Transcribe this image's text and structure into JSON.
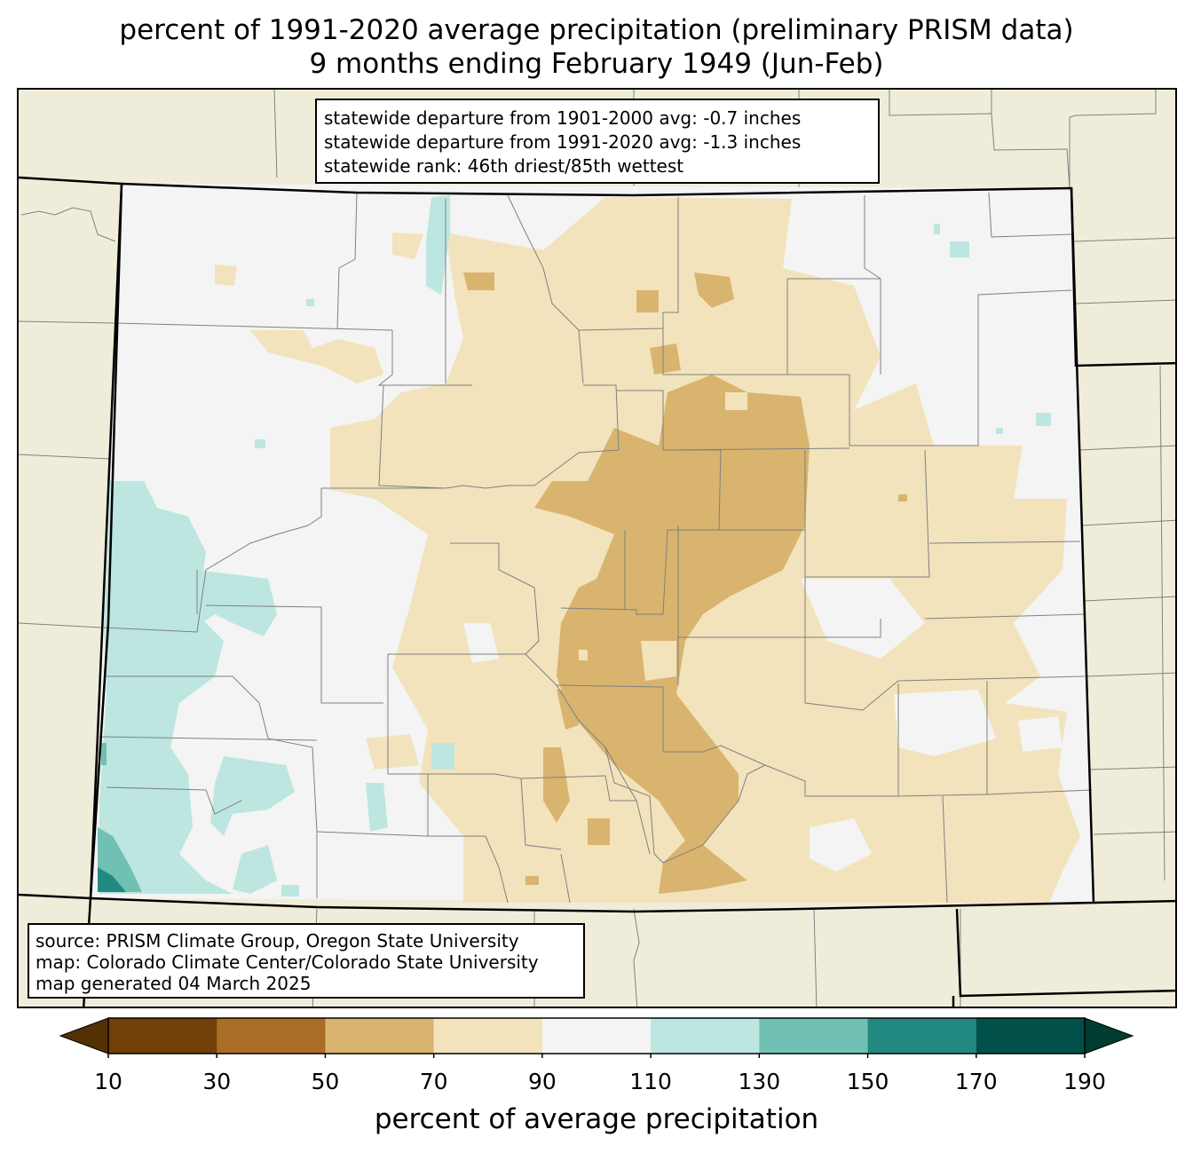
{
  "title": {
    "line1": "percent of 1991-2020 average precipitation (preliminary PRISM data)",
    "line2": "9 months ending February 1949 (Jun-Feb)"
  },
  "stats": {
    "line1": "statewide departure from 1901-2000 avg: -0.7 inches",
    "line2": "statewide departure from 1991-2020 avg: -1.3 inches",
    "line3": "statewide rank: 46th driest/85th wettest"
  },
  "source": {
    "line1": "source: PRISM Climate Group, Oregon State University",
    "line2": "map: Colorado Climate Center/Colorado State University",
    "line3": "map generated 04 March 2025"
  },
  "colorbar": {
    "label": "percent of average precipitation",
    "ticks": [
      "10",
      "30",
      "50",
      "70",
      "90",
      "110",
      "130",
      "150",
      "170",
      "190"
    ],
    "colors": [
      "#543005",
      "#713f08",
      "#a96d25",
      "#d9b46e",
      "#f2e3bc",
      "#f3f4f3",
      "#bde6e0",
      "#70c0b3",
      "#228981",
      "#01514a",
      "#003c30"
    ]
  },
  "map_colors": {
    "background_land": "#efedda",
    "state_fill": "#f3f4f3",
    "state_border": "#000000",
    "county_border": "#808080"
  }
}
